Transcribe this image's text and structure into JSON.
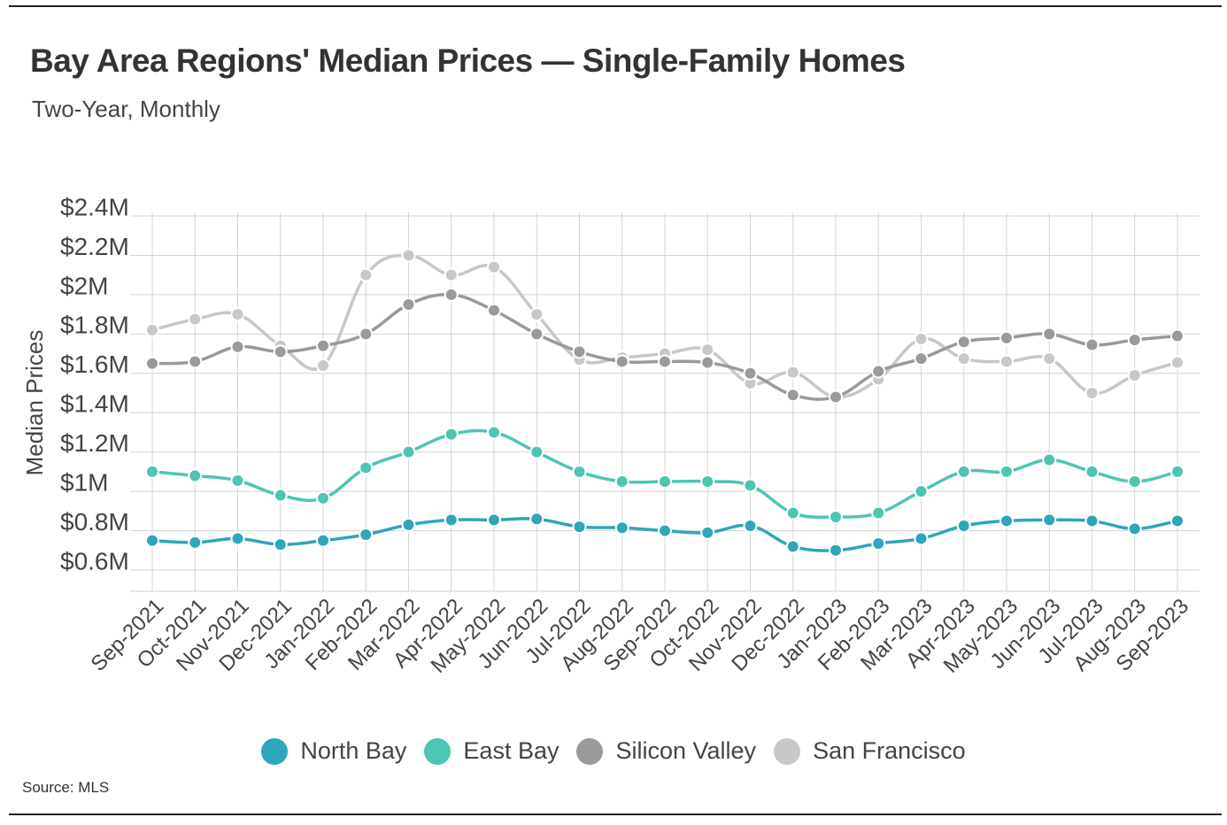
{
  "chart_data": {
    "type": "line",
    "title": "Bay Area Regions' Median Prices — Single-Family Homes",
    "subtitle": "Two-Year, Monthly",
    "xlabel": "",
    "ylabel": "Median Prices",
    "ylim": [
      0.5,
      2.4
    ],
    "yticks": [
      {
        "value": 0.6,
        "label": "$0.6M"
      },
      {
        "value": 0.8,
        "label": "$0.8M"
      },
      {
        "value": 1.0,
        "label": "$1M"
      },
      {
        "value": 1.2,
        "label": "$1.2M"
      },
      {
        "value": 1.4,
        "label": "$1.4M"
      },
      {
        "value": 1.6,
        "label": "$1.6M"
      },
      {
        "value": 1.8,
        "label": "$1.8M"
      },
      {
        "value": 2.0,
        "label": "$2M"
      },
      {
        "value": 2.2,
        "label": "$2.2M"
      },
      {
        "value": 2.4,
        "label": "$2.4M"
      }
    ],
    "grid": true,
    "legend_position": "bottom",
    "categories": [
      "Sep-2021",
      "Oct-2021",
      "Nov-2021",
      "Dec-2021",
      "Jan-2022",
      "Feb-2022",
      "Mar-2022",
      "Apr-2022",
      "May-2022",
      "Jun-2022",
      "Jul-2022",
      "Aug-2022",
      "Sep-2022",
      "Oct-2022",
      "Nov-2022",
      "Dec-2022",
      "Jan-2023",
      "Feb-2023",
      "Mar-2023",
      "Apr-2023",
      "May-2023",
      "Jun-2023",
      "Jul-2023",
      "Aug-2023",
      "Sep-2023"
    ],
    "series": [
      {
        "name": "San Francisco",
        "color": "#c8c8c8",
        "values": [
          1.82,
          1.875,
          1.9,
          1.74,
          1.64,
          2.1,
          2.2,
          2.1,
          2.14,
          1.9,
          1.67,
          1.68,
          1.7,
          1.72,
          1.55,
          1.605,
          1.48,
          1.57,
          1.775,
          1.675,
          1.66,
          1.675,
          1.5,
          1.59,
          1.655
        ]
      },
      {
        "name": "Silicon Valley",
        "color": "#9a9a9a",
        "values": [
          1.65,
          1.66,
          1.735,
          1.71,
          1.74,
          1.8,
          1.95,
          2.0,
          1.92,
          1.8,
          1.71,
          1.66,
          1.66,
          1.655,
          1.6,
          1.49,
          1.48,
          1.61,
          1.675,
          1.76,
          1.78,
          1.8,
          1.745,
          1.77,
          1.79
        ]
      },
      {
        "name": "East Bay",
        "color": "#4dc5b3",
        "values": [
          1.1,
          1.08,
          1.055,
          0.98,
          0.965,
          1.12,
          1.2,
          1.29,
          1.3,
          1.2,
          1.1,
          1.05,
          1.05,
          1.05,
          1.03,
          0.89,
          0.87,
          0.89,
          1.0,
          1.1,
          1.1,
          1.16,
          1.1,
          1.05,
          1.1
        ]
      },
      {
        "name": "North Bay",
        "color": "#2fa6b9",
        "values": [
          0.75,
          0.74,
          0.76,
          0.73,
          0.75,
          0.78,
          0.83,
          0.855,
          0.855,
          0.86,
          0.82,
          0.815,
          0.8,
          0.79,
          0.825,
          0.72,
          0.7,
          0.735,
          0.76,
          0.825,
          0.85,
          0.855,
          0.85,
          0.81,
          0.85
        ]
      }
    ],
    "legend": [
      {
        "name": "North Bay",
        "color": "#2fa6b9"
      },
      {
        "name": "East Bay",
        "color": "#4dc5b3"
      },
      {
        "name": "Silicon Valley",
        "color": "#9a9a9a"
      },
      {
        "name": "San Francisco",
        "color": "#c8c8c8"
      }
    ],
    "source": "Source:  MLS"
  }
}
